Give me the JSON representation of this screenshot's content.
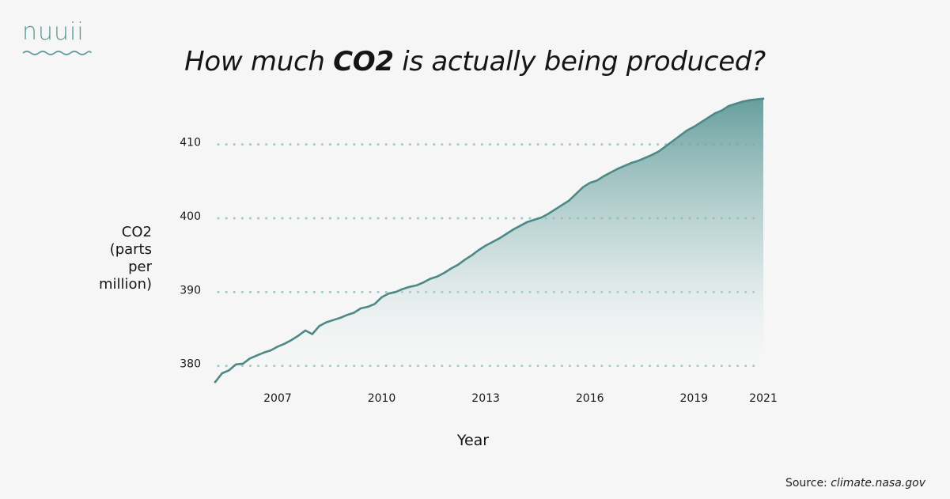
{
  "brand": {
    "logo_text": "nuuii",
    "teal": "#5a9a99"
  },
  "title": {
    "prefix": "How much ",
    "bold": "CO2",
    "suffix": " is actually being produced?"
  },
  "source": {
    "label": "Source: ",
    "site": "climate.nasa.gov"
  },
  "colors": {
    "line": "#4d8a87",
    "fill_top": "#5f9a98",
    "grid": "#9fcaca",
    "background": "#f6f6f6"
  },
  "chart_data": {
    "type": "area",
    "title": "How much CO2 is actually being produced?",
    "xlabel": "Year",
    "ylabel_lines": [
      "CO2",
      "(parts",
      "per",
      "million)"
    ],
    "ylim": [
      377.5,
      416.5
    ],
    "xlim": [
      2005.2,
      2021.0
    ],
    "yticks": [
      380,
      390,
      400,
      410
    ],
    "xticks": [
      2007,
      2010,
      2013,
      2016,
      2019,
      2021
    ],
    "grid": "dotted horizontal at y ticks",
    "legend": "none",
    "series": [
      {
        "x": [
          2005.2,
          2005.4,
          2005.6,
          2005.8,
          2006.0,
          2006.2,
          2006.4,
          2006.6,
          2006.8,
          2007.0,
          2007.2,
          2007.4,
          2007.6,
          2007.8,
          2008.0,
          2008.2,
          2008.4,
          2008.6,
          2008.8,
          2009.0,
          2009.2,
          2009.4,
          2009.6,
          2009.8,
          2010.0,
          2010.2,
          2010.4,
          2010.6,
          2010.8,
          2011.0,
          2011.2,
          2011.4,
          2011.6,
          2011.8,
          2012.0,
          2012.2,
          2012.4,
          2012.6,
          2012.8,
          2013.0,
          2013.2,
          2013.4,
          2013.6,
          2013.8,
          2014.0,
          2014.2,
          2014.4,
          2014.6,
          2014.8,
          2015.0,
          2015.2,
          2015.4,
          2015.6,
          2015.8,
          2016.0,
          2016.2,
          2016.4,
          2016.6,
          2016.8,
          2017.0,
          2017.2,
          2017.4,
          2017.6,
          2017.8,
          2018.0,
          2018.2,
          2018.4,
          2018.6,
          2018.8,
          2019.0,
          2019.2,
          2019.4,
          2019.6,
          2019.8,
          2020.0,
          2020.2,
          2020.4,
          2020.6,
          2020.8,
          2021.0
        ],
        "y": [
          377.8,
          379.0,
          379.4,
          380.2,
          380.3,
          381.0,
          381.4,
          381.8,
          382.1,
          382.6,
          383.0,
          383.5,
          384.1,
          384.8,
          384.3,
          385.4,
          385.9,
          386.2,
          386.5,
          386.9,
          387.2,
          387.8,
          388.0,
          388.4,
          389.3,
          389.8,
          390.0,
          390.4,
          390.7,
          390.9,
          391.3,
          391.8,
          392.1,
          392.6,
          393.2,
          393.7,
          394.4,
          395.0,
          395.7,
          396.3,
          396.8,
          397.3,
          397.9,
          398.5,
          399.0,
          399.5,
          399.8,
          400.1,
          400.6,
          401.2,
          401.8,
          402.4,
          403.3,
          404.2,
          404.8,
          405.1,
          405.7,
          406.2,
          406.7,
          407.1,
          407.5,
          407.8,
          408.2,
          408.6,
          409.1,
          409.8,
          410.5,
          411.2,
          411.9,
          412.4,
          413.0,
          413.6,
          414.2,
          414.6,
          415.2,
          415.5,
          415.8,
          416.0,
          416.1,
          416.2
        ]
      }
    ]
  }
}
